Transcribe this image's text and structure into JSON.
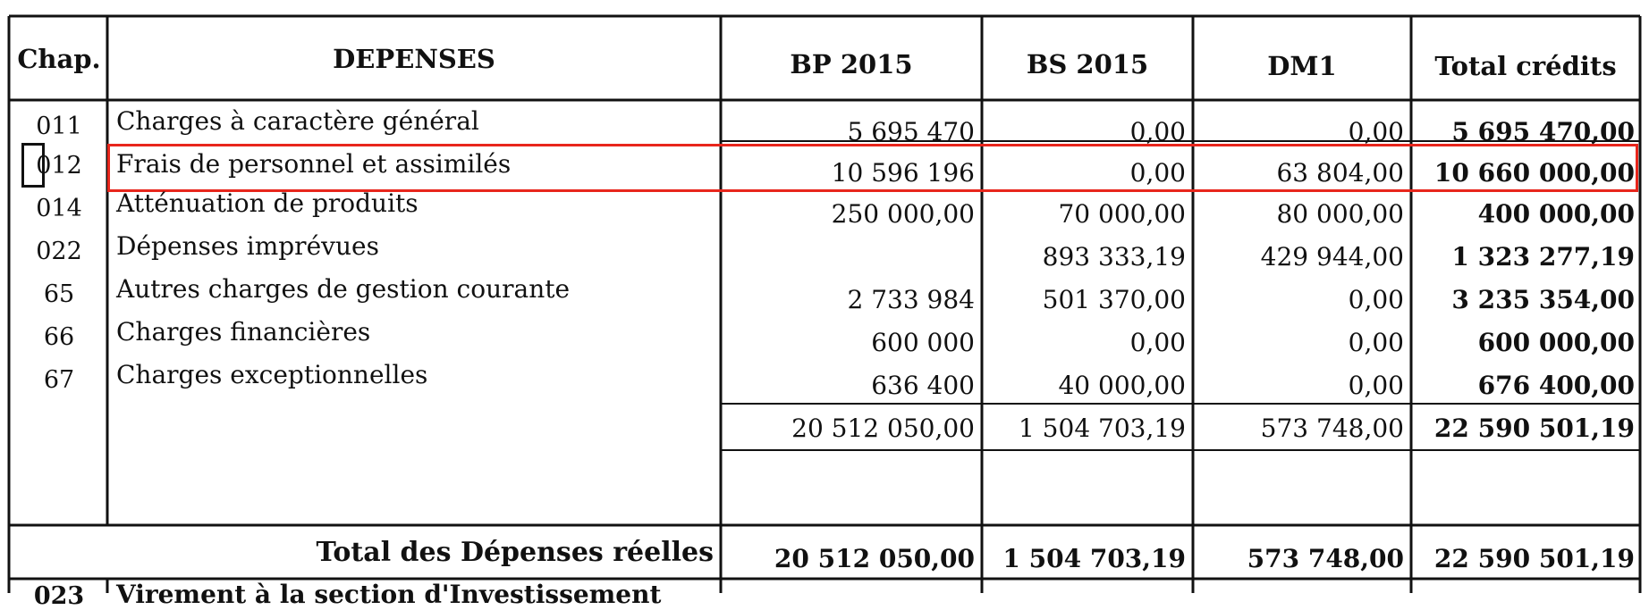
{
  "table": {
    "headers": {
      "chap": "Chap.",
      "depenses": "DEPENSES",
      "bp": "BP 2015",
      "bs": "BS 2015",
      "dm": "DM1",
      "total": "Total crédits"
    },
    "rows": [
      {
        "chap": "011",
        "label": "Charges à caractère général",
        "bp": "5 695 470",
        "bs": "0,00",
        "dm": "0,00",
        "total": "5 695 470,00"
      },
      {
        "chap": "012",
        "label": "Frais de personnel et assimilés",
        "bp": "10 596 196",
        "bs": "0,00",
        "dm": "63 804,00",
        "total": "10 660 000,00"
      },
      {
        "chap": "014",
        "label": "Atténuation de produits",
        "bp": "250 000,00",
        "bs": "70 000,00",
        "dm": "80 000,00",
        "total": "400 000,00"
      },
      {
        "chap": "022",
        "label": "Dépenses imprévues",
        "bp": "",
        "bs": "893 333,19",
        "dm": "429 944,00",
        "total": "1 323 277,19"
      },
      {
        "chap": "65",
        "label": "Autres charges de gestion courante",
        "bp": "2 733 984",
        "bs": "501 370,00",
        "dm": "0,00",
        "total": "3 235 354,00"
      },
      {
        "chap": "66",
        "label": "Charges financières",
        "bp": "600 000",
        "bs": "0,00",
        "dm": "0,00",
        "total": "600 000,00"
      },
      {
        "chap": "67",
        "label": "Charges exceptionnelles",
        "bp": "636 400",
        "bs": "40 000,00",
        "dm": "0,00",
        "total": "676 400,00"
      }
    ],
    "subtotal": {
      "bp": "20 512 050,00",
      "bs": "1 504 703,19",
      "dm": "573 748,00",
      "total": "22 590 501,19"
    },
    "total_row": {
      "label": "Total des Dépenses réelles",
      "bp": "20 512 050,00",
      "bs": "1 504 703,19",
      "dm": "573 748,00",
      "total": "22 590 501,19"
    },
    "next_row": {
      "chap": "023",
      "label": "Virement à la section d'Investissement"
    }
  },
  "highlight": {
    "color": "#e8261c",
    "marker_color": "#111111"
  }
}
